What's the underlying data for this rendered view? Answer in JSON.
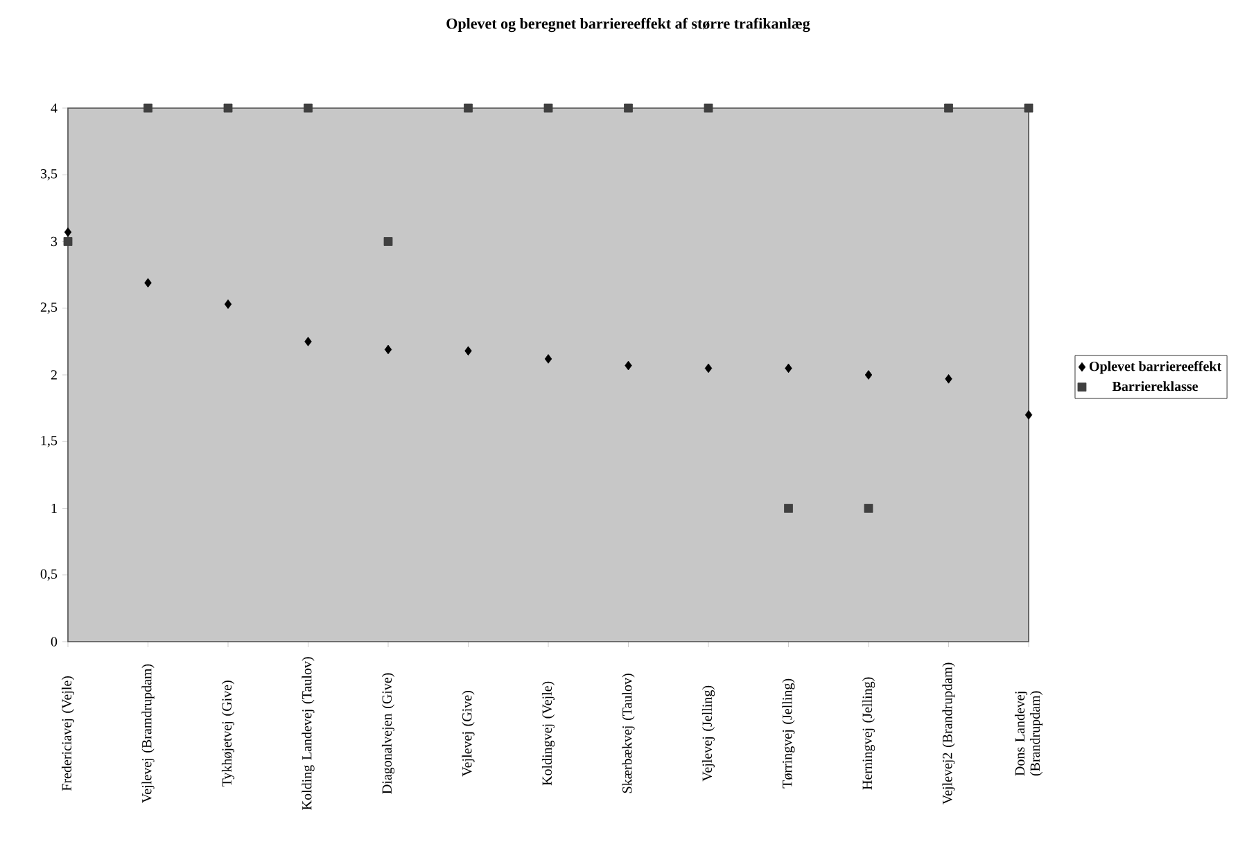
{
  "chart_data": {
    "type": "scatter",
    "title": "Oplevet og beregnet barriereeffekt af større trafikanlæg",
    "categories": [
      "Fredericiavej (Vejle)",
      "Vejlevej (Bramdrupdam)",
      "Tykhøjetvej (Give)",
      "Kolding Landevej (Taulov)",
      "Diagonalvejen (Give)",
      "Vejlevej (Give)",
      "Koldingvej (Vejle)",
      "Skærbækvej (Taulov)",
      "Vejlevej (Jelling)",
      "Tørringvej (Jelling)",
      "Herningvej (Jelling)",
      "Vejlevej2 (Brandrupdam)",
      "Dons Landevej (Brandrupdam)"
    ],
    "series": [
      {
        "name": "Oplevet barriereeffekt",
        "color": "#000000",
        "marker": "diamond",
        "values": [
          3.07,
          2.69,
          2.53,
          2.25,
          2.19,
          2.18,
          2.12,
          2.07,
          2.05,
          2.05,
          2.0,
          1.97,
          1.7
        ]
      },
      {
        "name": "Barriereklasse",
        "color": "#404040",
        "marker": "square",
        "values": [
          3,
          4,
          4,
          4,
          3,
          4,
          4,
          4,
          4,
          1,
          1,
          4,
          4
        ]
      }
    ],
    "ylim": [
      0,
      4
    ],
    "yticks": [
      0,
      {
        "value": 0.5,
        "label": "0,5"
      },
      1,
      {
        "value": 1.5,
        "label": "1,5"
      },
      2,
      {
        "value": 2.5,
        "label": "2,5"
      },
      3,
      {
        "value": 3.5,
        "label": "3,5"
      },
      4
    ],
    "grid": false,
    "legend": "right"
  }
}
